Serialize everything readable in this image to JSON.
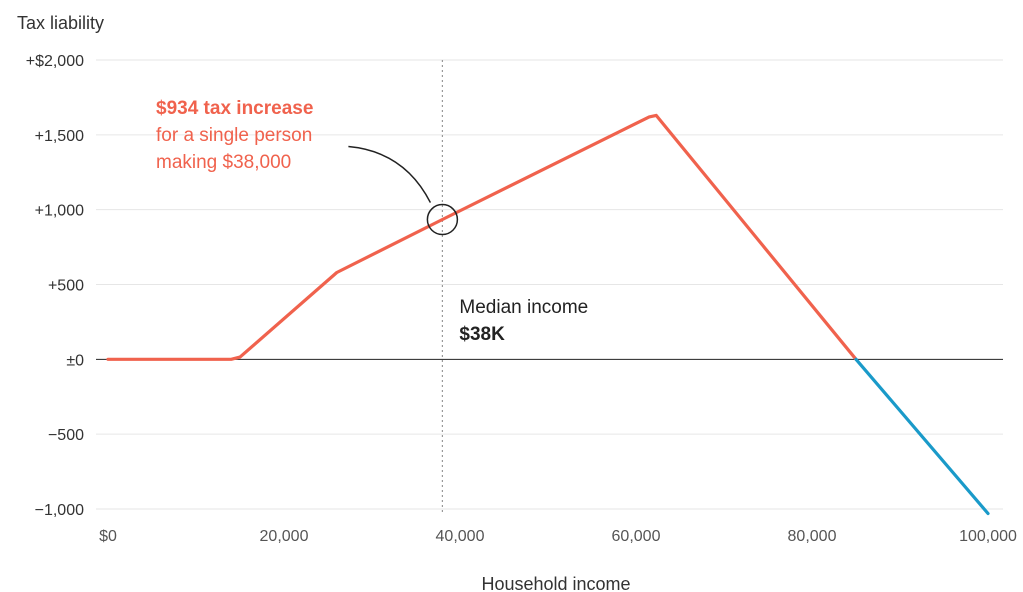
{
  "chart_data": {
    "type": "line",
    "title": "",
    "ylabel": "Tax liability",
    "xlabel": "Household income",
    "xlim": [
      0,
      100000
    ],
    "ylim": [
      -1000,
      2000
    ],
    "grid": true,
    "x_ticks": [
      0,
      20000,
      40000,
      60000,
      80000,
      100000
    ],
    "x_tick_labels": [
      "$0",
      "20,000",
      "40,000",
      "60,000",
      "80,000",
      "100,000"
    ],
    "y_ticks": [
      2000,
      1500,
      1000,
      500,
      0,
      -500,
      -1000
    ],
    "y_tick_labels": [
      "+$2,000",
      "+1,500",
      "+1,000",
      "+500",
      "±0",
      "−500",
      "−1,000"
    ],
    "series": [
      {
        "values_x": [
          0,
          14000,
          15000,
          26000,
          38000,
          61500,
          62300,
          85000,
          100000
        ],
        "values_y": [
          0,
          0,
          15,
          580,
          934,
          1620,
          1630,
          0,
          -1030
        ]
      }
    ],
    "colors": {
      "positive": "#f0624d",
      "negative": "#1a9ac9",
      "zero_line": "#222222",
      "grid": "#e6e6e6"
    },
    "annotations": {
      "tax_increase": {
        "headline": "$934 tax increase",
        "line2": "for a single person",
        "line3": "making $38,000",
        "x": 38000,
        "y": 934
      },
      "median": {
        "line1": "Median income",
        "line2": "$38K",
        "x": 38000
      }
    }
  }
}
